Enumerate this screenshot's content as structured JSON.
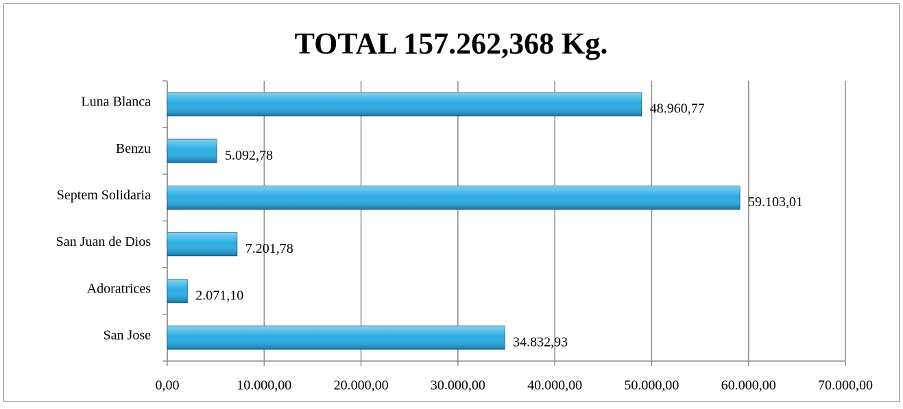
{
  "chart_data": {
    "type": "hbar",
    "title": "TOTAL 157.262,368 Kg.",
    "categories": [
      "Luna Blanca",
      "Benzu",
      "Septem Solidaria",
      "San Juan de Dios",
      "Adoratrices",
      "San Jose"
    ],
    "values": [
      48960.77,
      5092.78,
      59103.01,
      7201.78,
      2071.1,
      34832.93
    ],
    "value_labels": [
      "48.960,77",
      "5.092,78",
      "59.103,01",
      "7.201,78",
      "2.071,10",
      "34.832,93"
    ],
    "color": "#1ea9e1",
    "xlim": [
      0,
      70000
    ],
    "xticks": [
      {
        "value": 0,
        "label": "0,00"
      },
      {
        "value": 10000,
        "label": "10.000,00"
      },
      {
        "value": 20000,
        "label": "20.000,00"
      },
      {
        "value": 30000,
        "label": "30.000,00"
      },
      {
        "value": 40000,
        "label": "40.000,00"
      },
      {
        "value": 50000,
        "label": "50.000,00"
      },
      {
        "value": 60000,
        "label": "60.000,00"
      },
      {
        "value": 70000,
        "label": "70.000,00"
      }
    ],
    "grid": true
  }
}
